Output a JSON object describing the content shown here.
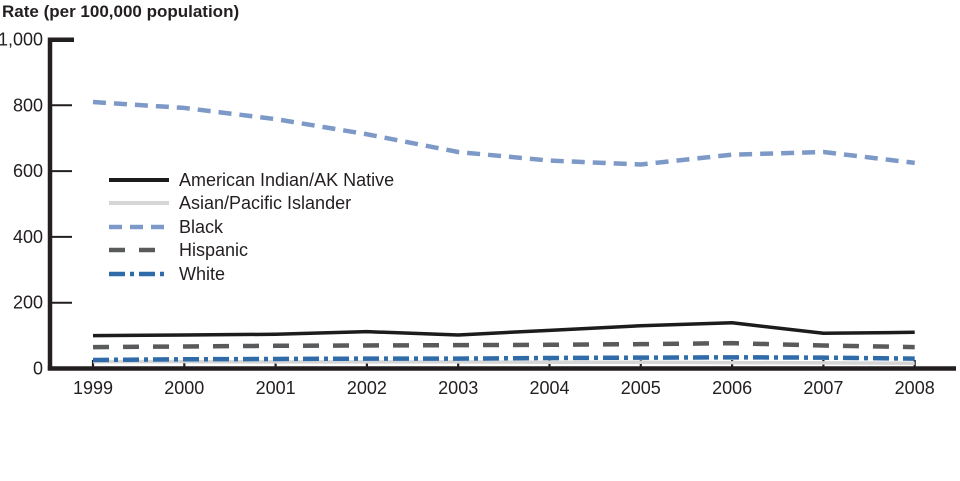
{
  "title": "Rate (per 100,000 population)",
  "chart_data": {
    "type": "line",
    "title": "Rate (per 100,000 population)",
    "xlabel": "",
    "ylabel": "Rate (per 100,000 population)",
    "x": [
      1999,
      2000,
      2001,
      2002,
      2003,
      2004,
      2005,
      2006,
      2007,
      2008
    ],
    "x_labels": [
      "1999",
      "2000",
      "2001",
      "2002",
      "2003",
      "2004",
      "2005",
      "2006",
      "2007",
      "2008"
    ],
    "ylim": [
      0,
      1000
    ],
    "y_ticks": [
      0,
      200,
      400,
      600,
      800,
      1000
    ],
    "y_tick_labels": [
      "0",
      "200",
      "400",
      "600",
      "800",
      "1,000"
    ],
    "grid": false,
    "legend_position": "upper-left-inside",
    "series": [
      {
        "name": "American Indian/AK Native",
        "color": "#1c1c1c",
        "style": "solid",
        "width": 3.5,
        "values": [
          100,
          102,
          104,
          112,
          102,
          116,
          130,
          139,
          107,
          110
        ]
      },
      {
        "name": "Asian/Pacific Islander",
        "color": "#d6d6d6",
        "style": "solid",
        "width": 3.5,
        "values": [
          21,
          21,
          20,
          20,
          20,
          19,
          19,
          18,
          17,
          16
        ]
      },
      {
        "name": "Black",
        "color": "#7d99c7",
        "style": "dashed",
        "width": 4.5,
        "values": [
          810,
          792,
          758,
          712,
          658,
          632,
          620,
          650,
          658,
          625
        ]
      },
      {
        "name": "Hispanic",
        "color": "#595a5c",
        "style": "long-dashed",
        "width": 4.5,
        "values": [
          65,
          67,
          69,
          70,
          71,
          72,
          74,
          77,
          70,
          65
        ]
      },
      {
        "name": "White",
        "color": "#2e6ba8",
        "style": "dash-dot",
        "width": 4.5,
        "values": [
          26,
          28,
          29,
          30,
          30,
          32,
          33,
          34,
          33,
          30
        ]
      }
    ],
    "axis_color": "#231f20"
  }
}
